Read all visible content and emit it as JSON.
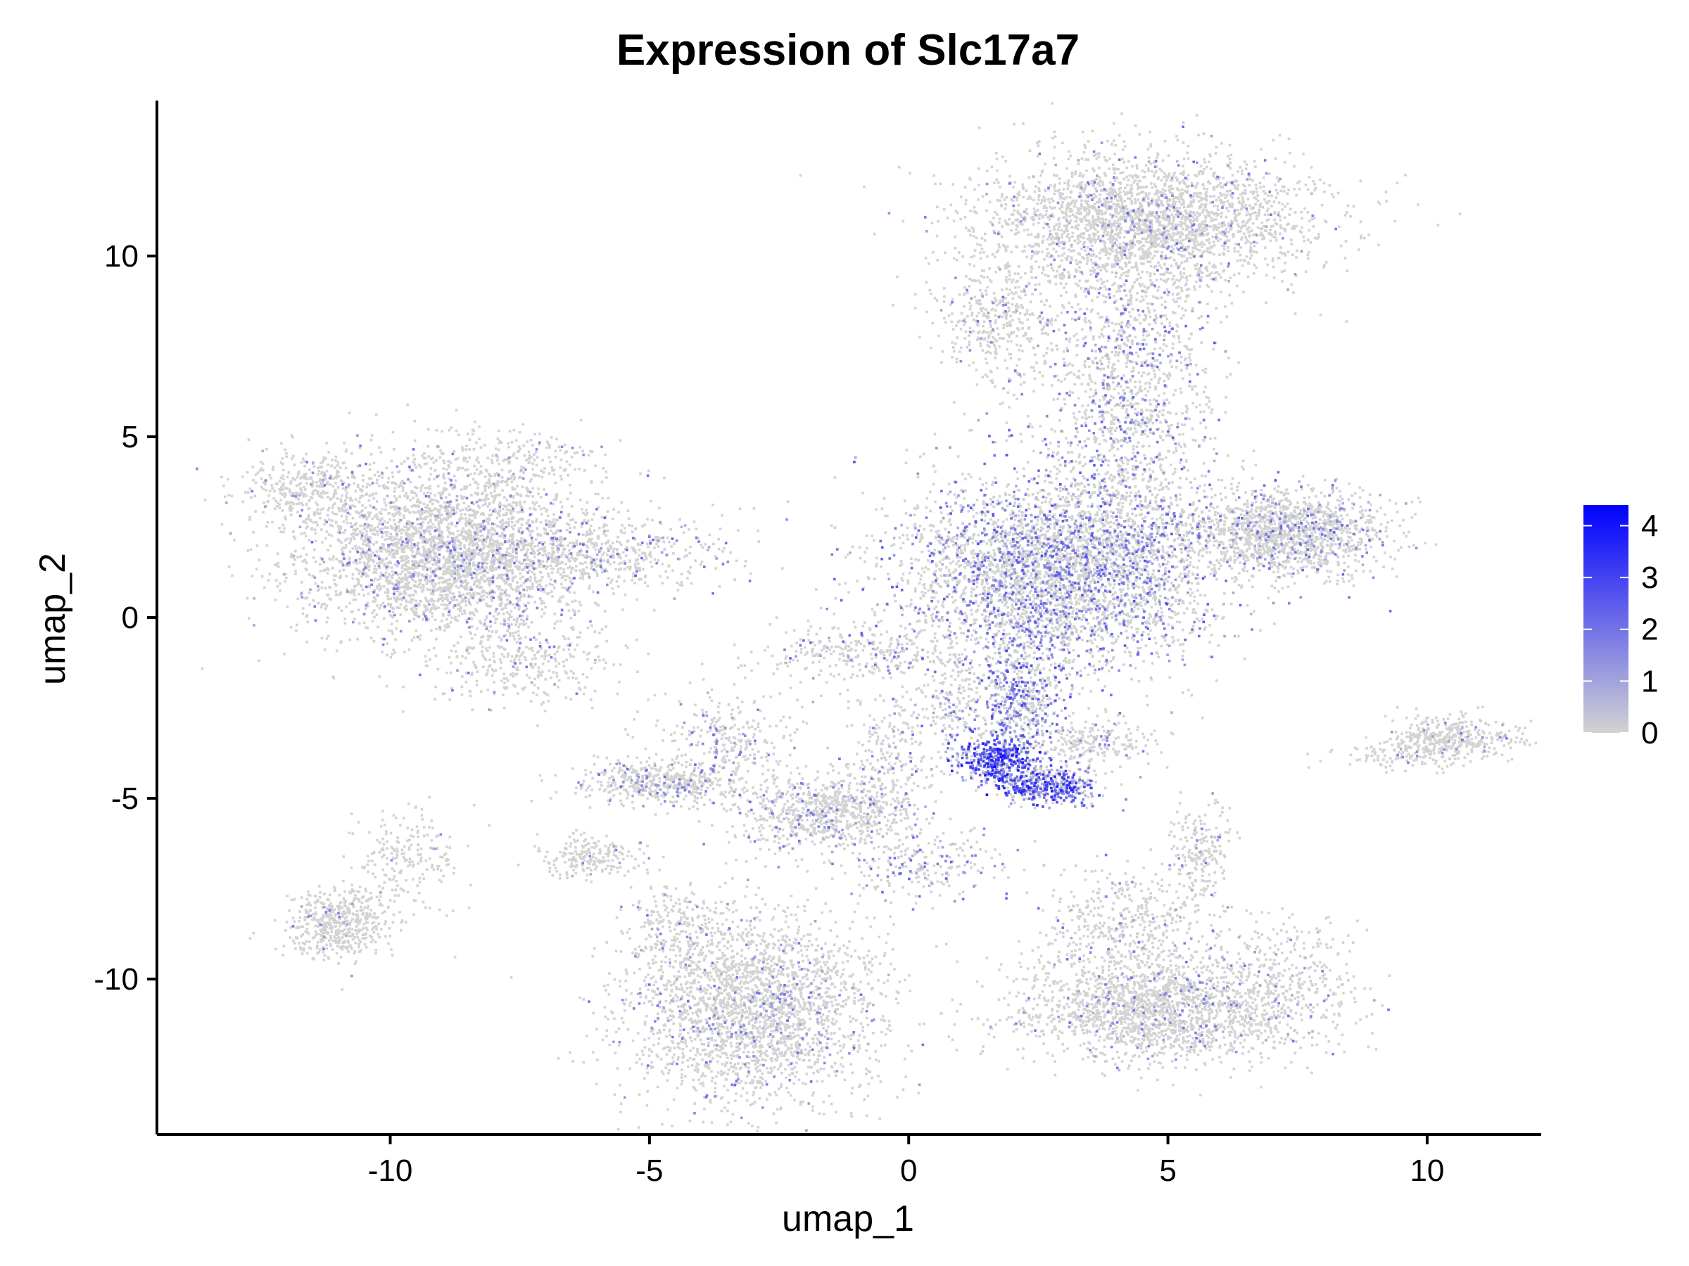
{
  "chart_data": {
    "type": "scatter",
    "title": "Expression of Slc17a7",
    "xlabel": "umap_1",
    "ylabel": "umap_2",
    "xlim": [
      -14.5,
      12.2
    ],
    "ylim": [
      -14.3,
      14.3
    ],
    "x_ticks": [
      -10,
      -5,
      0,
      5,
      10
    ],
    "y_ticks": [
      -10,
      -5,
      0,
      5,
      10
    ],
    "x_tick_labels": [
      "-10",
      "-5",
      "0",
      "5",
      "10"
    ],
    "y_tick_labels": [
      "-10",
      "-5",
      "0",
      "5",
      "10"
    ],
    "grid": false,
    "legend": {
      "placement": "right",
      "type": "colorbar",
      "min": 0,
      "max": 4.4,
      "ticks": [
        0,
        1,
        2,
        3,
        4
      ],
      "tick_labels": [
        "0",
        "1",
        "2",
        "3",
        "4"
      ],
      "low_color": "#d3d3d3",
      "high_color": "#0000ff"
    },
    "clusters": [
      {
        "cx": 4.6,
        "cy": 11.0,
        "sx": 1.6,
        "sy": 0.9,
        "n": 2600,
        "expr": 0.08
      },
      {
        "cx": 1.7,
        "cy": 8.2,
        "sx": 0.6,
        "sy": 0.8,
        "n": 400,
        "expr": 0.1
      },
      {
        "cx": 4.2,
        "cy": 6.0,
        "sx": 0.8,
        "sy": 2.6,
        "n": 1600,
        "expr": 0.22
      },
      {
        "cx": 2.8,
        "cy": 1.3,
        "sx": 1.5,
        "sy": 1.3,
        "n": 3800,
        "expr": 0.3
      },
      {
        "cx": 7.2,
        "cy": 2.4,
        "sx": 1.0,
        "sy": 0.6,
        "n": 1500,
        "expr": 0.14
      },
      {
        "cx": -9.0,
        "cy": 1.8,
        "sx": 1.4,
        "sy": 1.2,
        "n": 3200,
        "expr": 0.1
      },
      {
        "cx": -11.6,
        "cy": 3.6,
        "sx": 0.7,
        "sy": 0.5,
        "n": 350,
        "expr": 0.05
      },
      {
        "cx": -6.0,
        "cy": 1.8,
        "sx": 1.2,
        "sy": 0.5,
        "n": 500,
        "expr": 0.18
      },
      {
        "cx": -8.0,
        "cy": 4.2,
        "sx": 1.0,
        "sy": 0.5,
        "n": 250,
        "expr": 0.06
      },
      {
        "cx": 2.1,
        "cy": -2.2,
        "sx": 0.4,
        "sy": 0.8,
        "n": 500,
        "expr": 0.45
      },
      {
        "cx": 1.7,
        "cy": -3.9,
        "sx": 0.35,
        "sy": 0.3,
        "n": 400,
        "expr": 0.85
      },
      {
        "cx": 2.6,
        "cy": -4.6,
        "sx": 0.5,
        "sy": 0.25,
        "n": 450,
        "expr": 0.7
      },
      {
        "cx": 3.5,
        "cy": -3.4,
        "sx": 0.6,
        "sy": 0.4,
        "n": 250,
        "expr": 0.1
      },
      {
        "cx": -4.8,
        "cy": -4.5,
        "sx": 0.8,
        "sy": 0.3,
        "n": 500,
        "expr": 0.12
      },
      {
        "cx": -3.5,
        "cy": -3.2,
        "sx": 0.6,
        "sy": 0.6,
        "n": 250,
        "expr": 0.12
      },
      {
        "cx": -1.6,
        "cy": -5.3,
        "sx": 0.9,
        "sy": 0.5,
        "n": 800,
        "expr": 0.12
      },
      {
        "cx": -0.4,
        "cy": -3.6,
        "sx": 0.4,
        "sy": 0.8,
        "n": 200,
        "expr": 0.15
      },
      {
        "cx": 0.3,
        "cy": -6.8,
        "sx": 0.9,
        "sy": 0.5,
        "n": 250,
        "expr": 0.2
      },
      {
        "cx": -6.2,
        "cy": -6.6,
        "sx": 0.5,
        "sy": 0.3,
        "n": 200,
        "expr": 0.08
      },
      {
        "cx": -3.0,
        "cy": -10.8,
        "sx": 1.2,
        "sy": 1.3,
        "n": 2500,
        "expr": 0.1
      },
      {
        "cx": -4.5,
        "cy": -8.5,
        "sx": 0.5,
        "sy": 0.6,
        "n": 200,
        "expr": 0.06
      },
      {
        "cx": 5.0,
        "cy": -10.8,
        "sx": 1.5,
        "sy": 0.7,
        "n": 2000,
        "expr": 0.08
      },
      {
        "cx": 4.2,
        "cy": -8.5,
        "sx": 0.8,
        "sy": 0.8,
        "n": 500,
        "expr": 0.08
      },
      {
        "cx": 5.6,
        "cy": -6.5,
        "sx": 0.3,
        "sy": 0.6,
        "n": 200,
        "expr": 0.08
      },
      {
        "cx": 7.2,
        "cy": -9.5,
        "sx": 0.6,
        "sy": 0.8,
        "n": 200,
        "expr": 0.05
      },
      {
        "cx": -11.0,
        "cy": -8.4,
        "sx": 0.5,
        "sy": 0.5,
        "n": 500,
        "expr": 0.04
      },
      {
        "cx": -9.6,
        "cy": -6.5,
        "sx": 0.5,
        "sy": 0.7,
        "n": 200,
        "expr": 0.04
      },
      {
        "cx": 10.4,
        "cy": -3.3,
        "sx": 0.6,
        "sy": 0.3,
        "n": 400,
        "expr": 0.05
      },
      {
        "cx": 9.5,
        "cy": -3.8,
        "sx": 0.8,
        "sy": 0.2,
        "n": 100,
        "expr": 0.06
      },
      {
        "cx": -7.5,
        "cy": -1.2,
        "sx": 0.9,
        "sy": 0.6,
        "n": 300,
        "expr": 0.12
      },
      {
        "cx": -1.0,
        "cy": -1.0,
        "sx": 1.2,
        "sy": 0.4,
        "n": 300,
        "expr": 0.15
      },
      {
        "cx": 0.8,
        "cy": -2.5,
        "sx": 0.3,
        "sy": 0.8,
        "n": 200,
        "expr": 0.15
      }
    ]
  }
}
